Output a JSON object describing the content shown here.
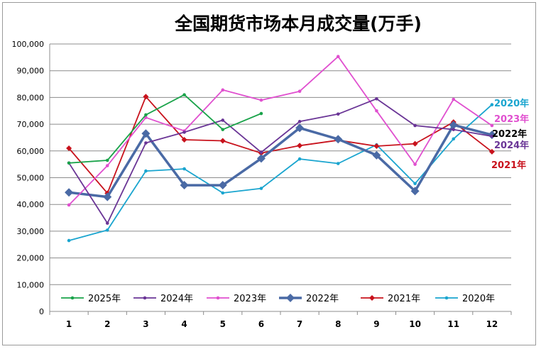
{
  "chart_data": {
    "type": "line",
    "title": "全国期货市场本月成交量(万手)",
    "xlabel": "",
    "ylabel": "",
    "categories": [
      "1",
      "2",
      "3",
      "4",
      "5",
      "6",
      "7",
      "8",
      "9",
      "10",
      "11",
      "12"
    ],
    "ylim": [
      0,
      100000
    ],
    "yticks": [
      0,
      10000,
      20000,
      30000,
      40000,
      50000,
      60000,
      70000,
      80000,
      90000,
      100000
    ],
    "ytick_labels": [
      "0",
      "10,000",
      "20,000",
      "30,000",
      "40,000",
      "50,000",
      "60,000",
      "70,000",
      "80,000",
      "90,000",
      "100,000"
    ],
    "grid": "horizontal",
    "legend_position": "bottom",
    "series": [
      {
        "name": "2025年",
        "color": "#1aa34a",
        "marker": "dot",
        "width": 1.8,
        "values": [
          55500,
          56500,
          73500,
          81000,
          68000,
          74000,
          null,
          null,
          null,
          null,
          null,
          null
        ]
      },
      {
        "name": "2024年",
        "color": "#6a3596",
        "marker": "dot",
        "width": 1.8,
        "values": [
          55500,
          33000,
          63000,
          67000,
          71500,
          59500,
          71000,
          73800,
          79500,
          69500,
          68000,
          65500
        ]
      },
      {
        "name": "2023年",
        "color": "#e04fcf",
        "marker": "dot",
        "width": 1.8,
        "values": [
          39800,
          54500,
          72500,
          67500,
          82800,
          79000,
          82300,
          95300,
          75000,
          55000,
          79300,
          69500
        ]
      },
      {
        "name": "2022年",
        "color": "#4a6aa5",
        "marker": "diamond",
        "width": 3.5,
        "values": [
          44500,
          42800,
          66500,
          47200,
          47200,
          57200,
          68600,
          64400,
          58400,
          45000,
          69700,
          66000
        ]
      },
      {
        "name": "2021年",
        "color": "#c8121c",
        "marker": "diamond-small",
        "width": 1.8,
        "values": [
          61000,
          44200,
          80300,
          64200,
          63800,
          59200,
          62000,
          64000,
          61800,
          62700,
          70800,
          59700
        ]
      },
      {
        "name": "2020年",
        "color": "#1aa5cf",
        "marker": "dot",
        "width": 1.8,
        "values": [
          26500,
          30400,
          52500,
          53300,
          44300,
          46000,
          57000,
          55300,
          62300,
          47800,
          64500,
          77300
        ]
      }
    ],
    "end_labels": [
      {
        "series": "2020年",
        "text": "2020年",
        "color": "#1aa5cf"
      },
      {
        "series": "2023年",
        "text": "2023年",
        "color": "#e04fcf"
      },
      {
        "series": "2022年",
        "text": "2022年",
        "color": "#000000"
      },
      {
        "series": "2024年",
        "text": "2024年",
        "color": "#6a3596"
      },
      {
        "series": "2021年",
        "text": "2021年",
        "color": "#c8121c"
      }
    ]
  }
}
